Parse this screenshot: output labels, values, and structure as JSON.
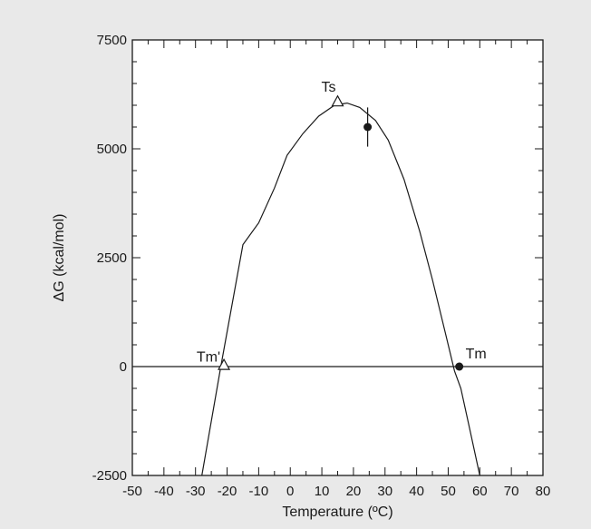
{
  "colors": {
    "background": "#e9e9e9",
    "plot_bg": "#ffffff",
    "ink": "#1a1a1a"
  },
  "chart_data": {
    "type": "line",
    "title": "",
    "xlabel": "Temperature (ºC)",
    "ylabel": "ΔG (kcal/mol)",
    "xlim": [
      -50,
      80
    ],
    "ylim": [
      -2500,
      7500
    ],
    "x_ticks": [
      "-50",
      "-40",
      "-30",
      "-20",
      "-10",
      "0",
      "10",
      "20",
      "30",
      "40",
      "50",
      "60",
      "70",
      "80"
    ],
    "y_ticks": [
      "-2500",
      "0",
      "2500",
      "5000",
      "7500"
    ],
    "grid": false,
    "legend": "none",
    "series": [
      {
        "x": [
          -28,
          -22,
          -15,
          -10,
          -5,
          -1,
          4,
          9,
          14,
          18,
          22,
          27,
          31,
          36,
          41,
          45,
          49,
          52,
          54,
          57,
          60
        ],
        "y": [
          -2500,
          0,
          2800,
          3300,
          4100,
          4850,
          5350,
          5750,
          6000,
          6050,
          5950,
          5650,
          5200,
          4300,
          3100,
          2000,
          800,
          -100,
          -500,
          -1500,
          -2500
        ]
      }
    ],
    "reference_lines": [
      {
        "axis": "y",
        "value": 0
      }
    ],
    "markers": [
      {
        "label": "Ts",
        "x": 15,
        "y": 6100,
        "shape": "open-triangle"
      },
      {
        "label": "Tm'",
        "x": -21,
        "y": 50,
        "shape": "open-triangle"
      },
      {
        "label": "Tm",
        "x": 53.5,
        "y": 0,
        "shape": "filled-circle"
      },
      {
        "label": "",
        "x": 24.5,
        "y": 5500,
        "shape": "filled-circle",
        "error": 450
      }
    ]
  }
}
